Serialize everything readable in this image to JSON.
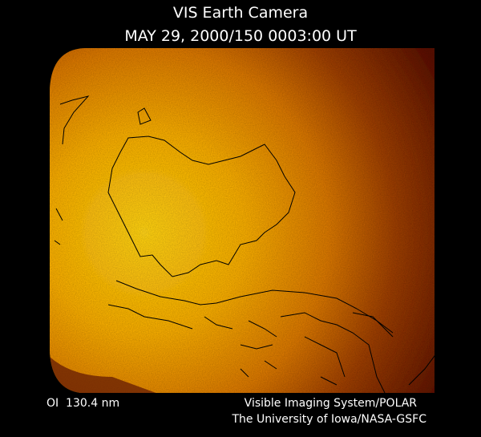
{
  "header": {
    "title": "VIS Earth Camera",
    "timestamp": "MAY 29, 2000/150 0003:00 UT"
  },
  "footer": {
    "filter": "OI  130.4 nm",
    "instrument": "Visible Imaging System/POLAR",
    "institution": "The University of Iowa/NASA-GSFC"
  }
}
